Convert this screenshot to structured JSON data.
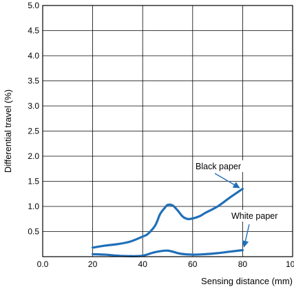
{
  "chart_data": {
    "type": "line",
    "title": "",
    "xlabel": "Sensing distance (mm)",
    "ylabel": "Differential travel (%)",
    "xlim": [
      0,
      100
    ],
    "ylim": [
      0,
      5.0
    ],
    "x_ticks": [
      {
        "value": 0,
        "label": "0.0"
      },
      {
        "value": 20,
        "label": "20"
      },
      {
        "value": 40,
        "label": "40"
      },
      {
        "value": 60,
        "label": "60"
      },
      {
        "value": 80,
        "label": "80"
      },
      {
        "value": 100,
        "label": "100"
      }
    ],
    "y_ticks": [
      {
        "value": 0.5,
        "label": "0.5"
      },
      {
        "value": 1.0,
        "label": "1.0"
      },
      {
        "value": 1.5,
        "label": "1.5"
      },
      {
        "value": 2.0,
        "label": "2.0"
      },
      {
        "value": 2.5,
        "label": "2.5"
      },
      {
        "value": 3.0,
        "label": "3.0"
      },
      {
        "value": 3.5,
        "label": "3.5"
      },
      {
        "value": 4.0,
        "label": "4.0"
      },
      {
        "value": 4.5,
        "label": "4.5"
      },
      {
        "value": 5.0,
        "label": "5.0"
      }
    ],
    "grid": true,
    "line_color": "#1f6fb8",
    "series": [
      {
        "name": "Black paper",
        "x": [
          20,
          25,
          30,
          35,
          40,
          42,
          45,
          47,
          49,
          50,
          52,
          54,
          56,
          58,
          60,
          63,
          65,
          70,
          75,
          80
        ],
        "y": [
          0.18,
          0.22,
          0.25,
          0.3,
          0.4,
          0.45,
          0.62,
          0.85,
          0.98,
          1.03,
          1.02,
          0.92,
          0.8,
          0.75,
          0.76,
          0.81,
          0.87,
          1.0,
          1.18,
          1.35
        ]
      },
      {
        "name": "White paper",
        "x": [
          20,
          25,
          30,
          35,
          40,
          45,
          50,
          55,
          60,
          65,
          70,
          75,
          80
        ],
        "y": [
          0.05,
          0.04,
          0.02,
          0.01,
          0.02,
          0.09,
          0.12,
          0.06,
          0.04,
          0.05,
          0.07,
          0.1,
          0.13
        ]
      }
    ],
    "annotations": [
      {
        "text": "Black paper",
        "series": "Black paper",
        "point_x": 79,
        "point_y": 1.33
      },
      {
        "text": "White paper",
        "series": "White paper",
        "point_x": 80,
        "point_y": 0.14
      }
    ]
  }
}
